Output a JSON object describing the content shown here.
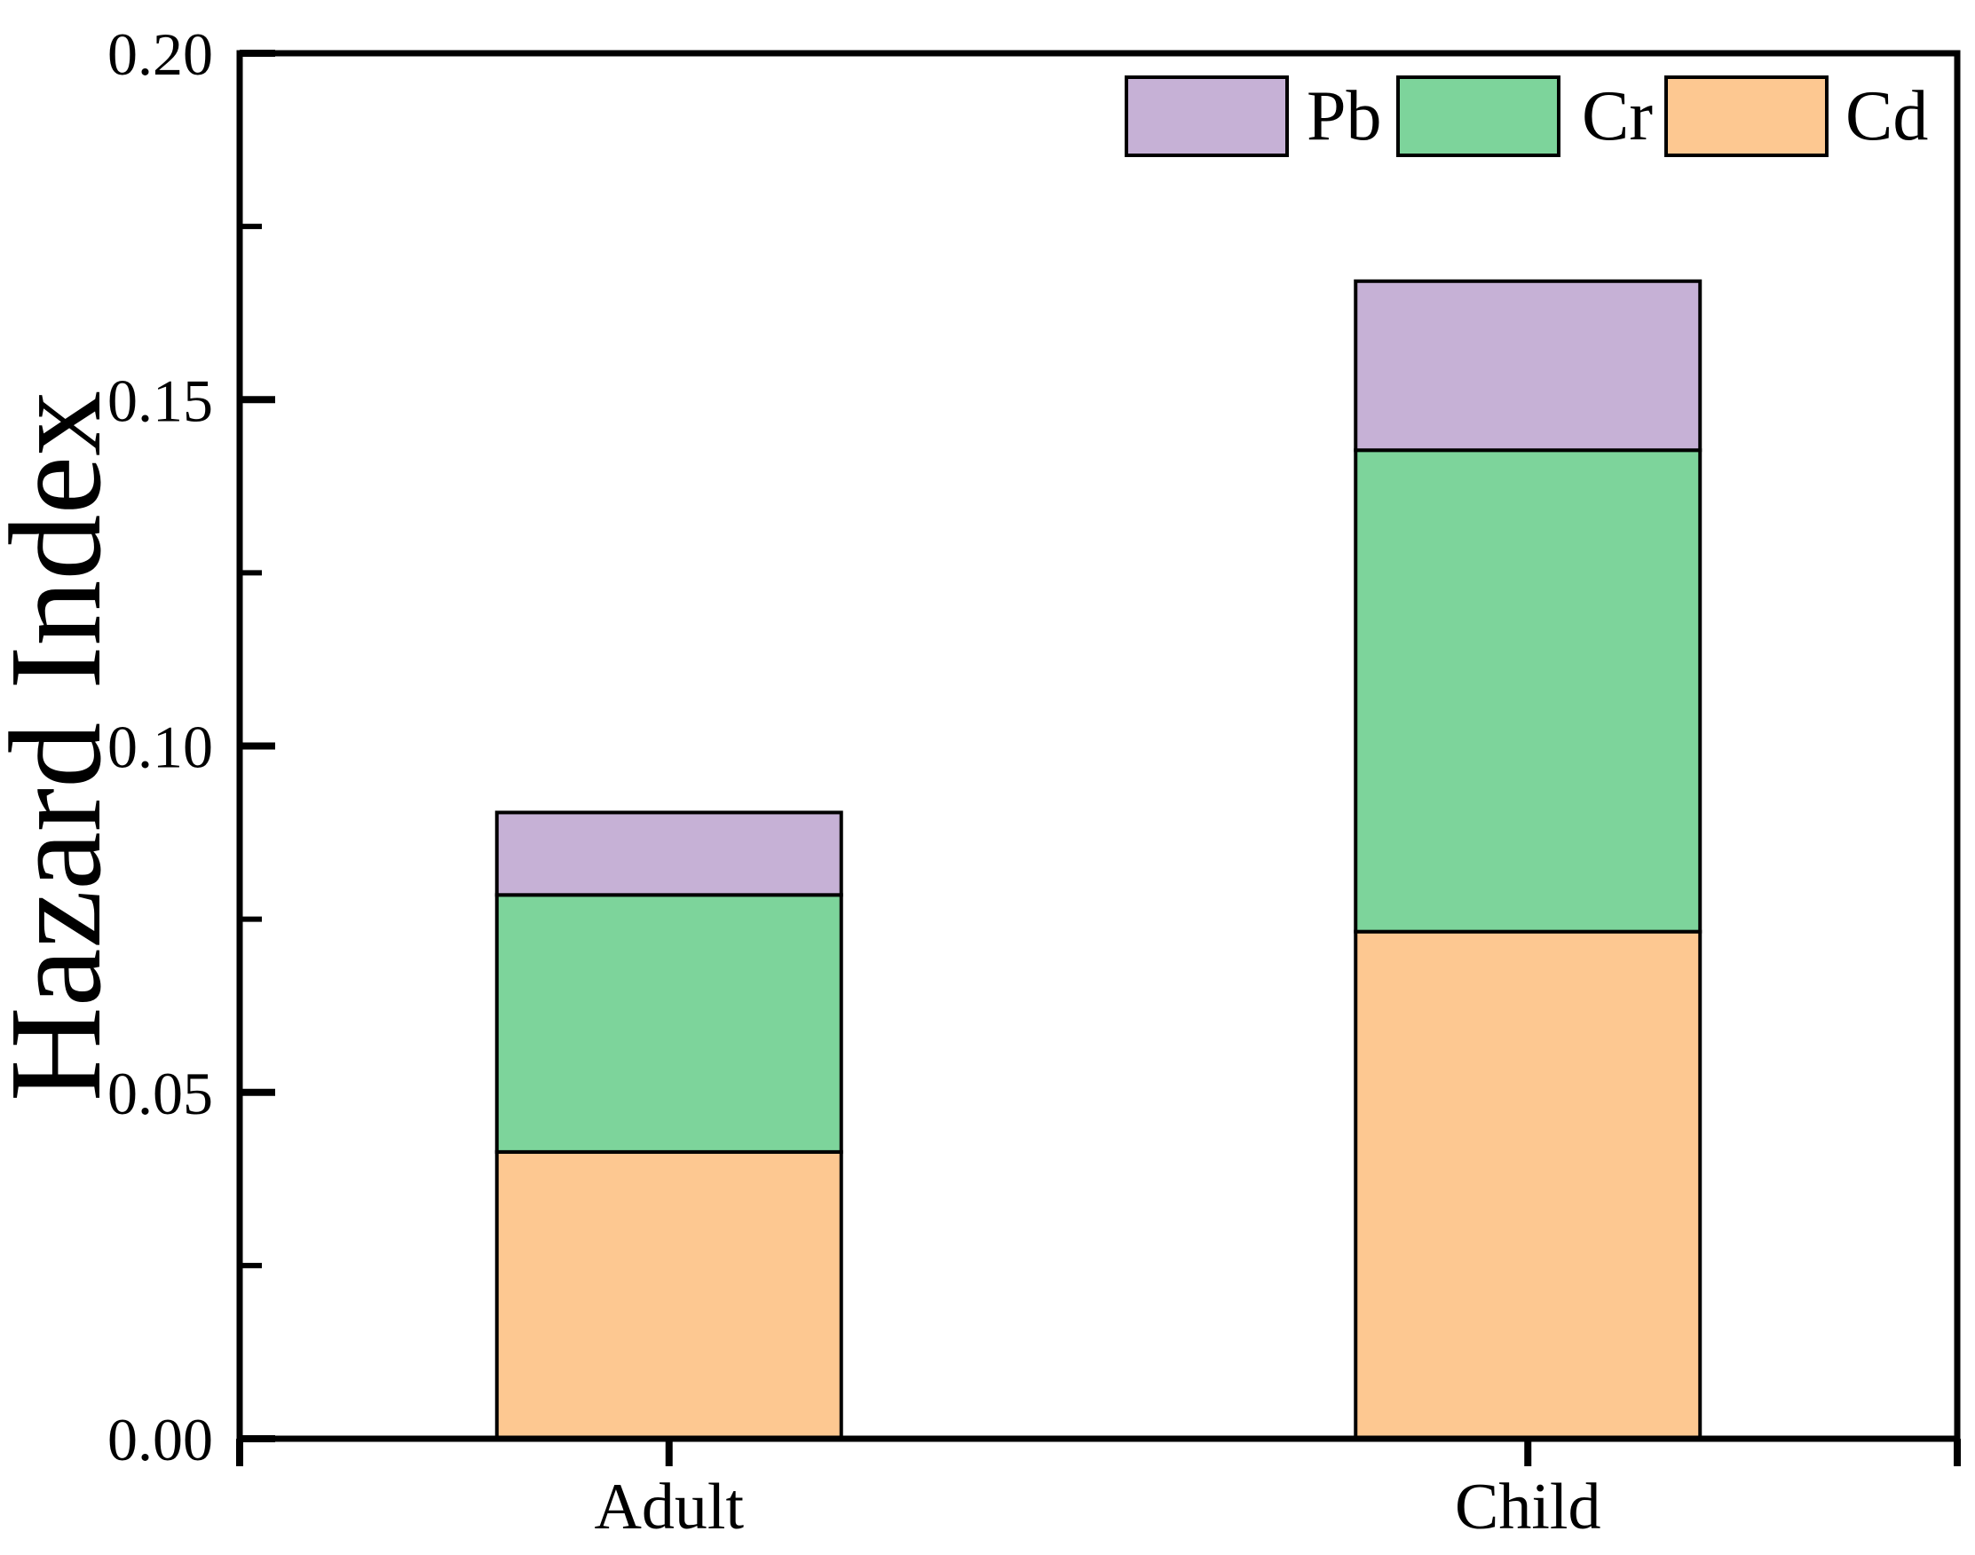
{
  "chart_data": {
    "type": "bar",
    "stacked": true,
    "orientation": "vertical",
    "title": "",
    "xlabel": "",
    "ylabel": "Hazard Index",
    "categories": [
      "Adult",
      "Child"
    ],
    "series": [
      {
        "name": "Cd",
        "color": "#FDC891",
        "values": [
          0.0414,
          0.0732
        ]
      },
      {
        "name": "Cr",
        "color": "#7DD49B",
        "values": [
          0.0371,
          0.0695
        ]
      },
      {
        "name": "Pb",
        "color": "#C6B1D6",
        "values": [
          0.0119,
          0.0244
        ]
      }
    ],
    "stack_order_bottom_to_top": [
      "Cd",
      "Cr",
      "Pb"
    ],
    "totals": {
      "Adult": 0.09,
      "Child": 0.167
    },
    "ylim": [
      0.0,
      0.2
    ],
    "yticks": [
      {
        "value": 0.0,
        "label": "0.00"
      },
      {
        "value": 0.05,
        "label": "0.05"
      },
      {
        "value": 0.1,
        "label": "0.10"
      },
      {
        "value": 0.15,
        "label": "0.15"
      },
      {
        "value": 0.2,
        "label": "0.20"
      }
    ],
    "y_minor_ticks": [
      0.025,
      0.075,
      0.125,
      0.175
    ],
    "grid": false,
    "axis_color": "#000000",
    "bar_edge_color": "#000000",
    "legend": {
      "position": "top-right-inside",
      "entries": [
        {
          "label": "Pb",
          "series": "Pb"
        },
        {
          "label": "Cr",
          "series": "Cr"
        },
        {
          "label": "Cd",
          "series": "Cd"
        }
      ]
    }
  }
}
